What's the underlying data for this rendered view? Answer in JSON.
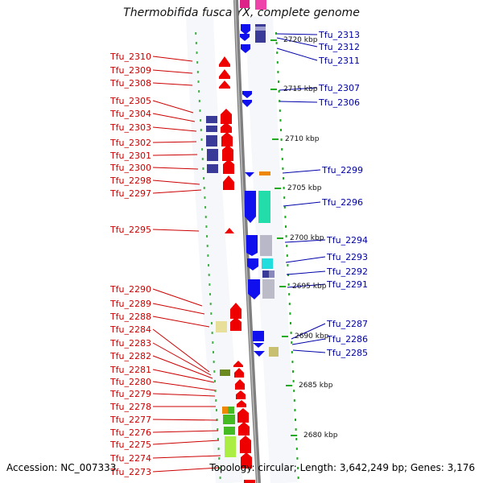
{
  "title": "Thermobifida fusca YX, complete genome",
  "footer": {
    "accession": "Accession: NC_007333",
    "stats": "Topology: circular; Length: 3,642,249 bp; Genes: 3,176"
  },
  "kbp_labels": [
    "2720 kbp",
    "2715 kbp",
    "2710 kbp",
    "2705 kbp",
    "2700 kbp",
    "2695 kbp",
    "2690 kbp",
    "2685 kbp",
    "2680 kbp"
  ],
  "left_genes": [
    "Tfu_2310",
    "Tfu_2309",
    "Tfu_2308",
    "Tfu_2305",
    "Tfu_2304",
    "Tfu_2303",
    "Tfu_2302",
    "Tfu_2301",
    "Tfu_2300",
    "Tfu_2298",
    "Tfu_2297",
    "Tfu_2295",
    "Tfu_2290",
    "Tfu_2289",
    "Tfu_2288",
    "Tfu_2284",
    "Tfu_2283",
    "Tfu_2282",
    "Tfu_2281",
    "Tfu_2280",
    "Tfu_2279",
    "Tfu_2278",
    "Tfu_2277",
    "Tfu_2276",
    "Tfu_2275",
    "Tfu_2274",
    "Tfu_2273"
  ],
  "right_genes": [
    "Tfu_2313",
    "Tfu_2312",
    "Tfu_2311",
    "Tfu_2307",
    "Tfu_2306",
    "Tfu_2299",
    "Tfu_2296",
    "Tfu_2294",
    "Tfu_2293",
    "Tfu_2292",
    "Tfu_2291",
    "Tfu_2287",
    "Tfu_2286",
    "Tfu_2285"
  ],
  "colors": {
    "forward_strand": "#ff0000",
    "reverse_strand": "#1010ee",
    "left_label": "#cc0000",
    "right_label": "#0000aa",
    "backbone": "#888888",
    "tick": "#22aa22"
  }
}
